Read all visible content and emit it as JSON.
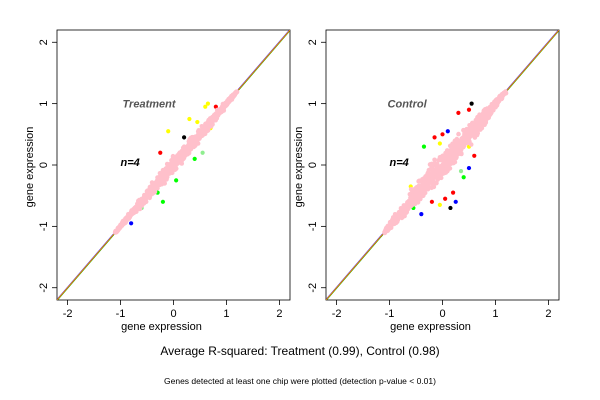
{
  "captions": {
    "main": "Average R-squared: Treatment (0.99), Control (0.98)",
    "sub": "Genes detected at least one chip were plotted (detection p-value < 0.01)"
  },
  "colors": {
    "points_main": "#ffc0cb",
    "outliers": [
      "#ffff00",
      "#ff0000",
      "#0000ff",
      "#00ff00",
      "#90ee90",
      "#000000"
    ],
    "diagonal": "#ff7f00",
    "diagonal2": "#3333ff",
    "diagonal3": "#00aa00",
    "axis": "#000000"
  },
  "chart_data": [
    {
      "type": "scatter",
      "title": "Treatment",
      "annotation": "n=4",
      "xlabel": "gene expression",
      "ylabel": "gene expression",
      "xlim": [
        -2.2,
        2.2
      ],
      "ylim": [
        -2.2,
        2.2
      ],
      "xticks": [
        "-2",
        "-1",
        "0",
        "1",
        "2"
      ],
      "yticks": [
        "-2",
        "-1",
        "0",
        "1",
        "2"
      ],
      "diagonal": true,
      "cloud": {
        "from": [
          -1.1,
          -1.1
        ],
        "to": [
          1.2,
          1.2
        ],
        "spread": 0.12
      },
      "outliers": [
        {
          "x": 0.6,
          "y": 0.95,
          "c": "yellow"
        },
        {
          "x": 0.65,
          "y": 1.0,
          "c": "yellow"
        },
        {
          "x": 0.45,
          "y": 0.7,
          "c": "yellow"
        },
        {
          "x": 0.3,
          "y": 0.75,
          "c": "yellow"
        },
        {
          "x": -0.1,
          "y": 0.55,
          "c": "yellow"
        },
        {
          "x": 0.7,
          "y": 0.6,
          "c": "yellow"
        },
        {
          "x": 0.2,
          "y": 0.45,
          "c": "black"
        },
        {
          "x": -0.25,
          "y": 0.2,
          "c": "red"
        },
        {
          "x": -0.5,
          "y": -0.5,
          "c": "blue"
        },
        {
          "x": -0.8,
          "y": -0.95,
          "c": "blue"
        },
        {
          "x": -0.2,
          "y": -0.6,
          "c": "green"
        },
        {
          "x": -0.3,
          "y": -0.45,
          "c": "green"
        },
        {
          "x": 0.4,
          "y": 0.1,
          "c": "green"
        },
        {
          "x": 0.55,
          "y": 0.2,
          "c": "lightgreen"
        },
        {
          "x": -0.6,
          "y": -0.7,
          "c": "lightgreen"
        },
        {
          "x": 0.05,
          "y": -0.25,
          "c": "green"
        },
        {
          "x": 0.55,
          "y": 0.55,
          "c": "black"
        },
        {
          "x": 0.8,
          "y": 0.95,
          "c": "red"
        }
      ]
    },
    {
      "type": "scatter",
      "title": "Control",
      "annotation": "n=4",
      "xlabel": "gene expression",
      "ylabel": "gene expression",
      "xlim": [
        -2.2,
        2.2
      ],
      "ylim": [
        -2.2,
        2.2
      ],
      "xticks": [
        "-2",
        "-1",
        "0",
        "1",
        "2"
      ],
      "yticks": [
        "-2",
        "-1",
        "0",
        "1",
        "2"
      ],
      "diagonal": true,
      "cloud": {
        "from": [
          -1.1,
          -1.1
        ],
        "to": [
          1.2,
          1.2
        ],
        "spread": 0.2
      },
      "outliers": [
        {
          "x": 0.0,
          "y": 0.5,
          "c": "red"
        },
        {
          "x": -0.15,
          "y": 0.45,
          "c": "red"
        },
        {
          "x": 0.1,
          "y": 0.55,
          "c": "blue"
        },
        {
          "x": 0.3,
          "y": 0.85,
          "c": "red"
        },
        {
          "x": 0.5,
          "y": 0.9,
          "c": "red"
        },
        {
          "x": 0.55,
          "y": 1.0,
          "c": "black"
        },
        {
          "x": -0.35,
          "y": 0.3,
          "c": "green"
        },
        {
          "x": -0.05,
          "y": 0.35,
          "c": "yellow"
        },
        {
          "x": 0.5,
          "y": 0.3,
          "c": "yellow"
        },
        {
          "x": 0.6,
          "y": 0.15,
          "c": "red"
        },
        {
          "x": -0.2,
          "y": -0.6,
          "c": "red"
        },
        {
          "x": 0.05,
          "y": -0.55,
          "c": "red"
        },
        {
          "x": 0.2,
          "y": -0.45,
          "c": "red"
        },
        {
          "x": -0.05,
          "y": -0.65,
          "c": "yellow"
        },
        {
          "x": 0.25,
          "y": -0.6,
          "c": "blue"
        },
        {
          "x": -0.4,
          "y": -0.8,
          "c": "blue"
        },
        {
          "x": 0.4,
          "y": -0.2,
          "c": "green"
        },
        {
          "x": 0.35,
          "y": -0.1,
          "c": "lightgreen"
        },
        {
          "x": -0.55,
          "y": -0.7,
          "c": "green"
        },
        {
          "x": 0.15,
          "y": -0.7,
          "c": "black"
        },
        {
          "x": 0.5,
          "y": -0.05,
          "c": "blue"
        },
        {
          "x": -0.6,
          "y": -0.35,
          "c": "yellow"
        },
        {
          "x": 0.8,
          "y": 0.7,
          "c": "blue"
        },
        {
          "x": 0.45,
          "y": 0.45,
          "c": "black"
        }
      ]
    }
  ]
}
